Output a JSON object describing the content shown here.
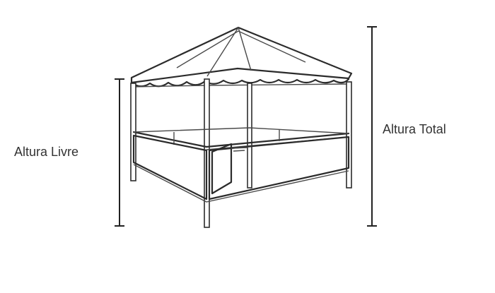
{
  "labels": {
    "free_height": "Altura Livre",
    "total_height": "Altura Total"
  }
}
